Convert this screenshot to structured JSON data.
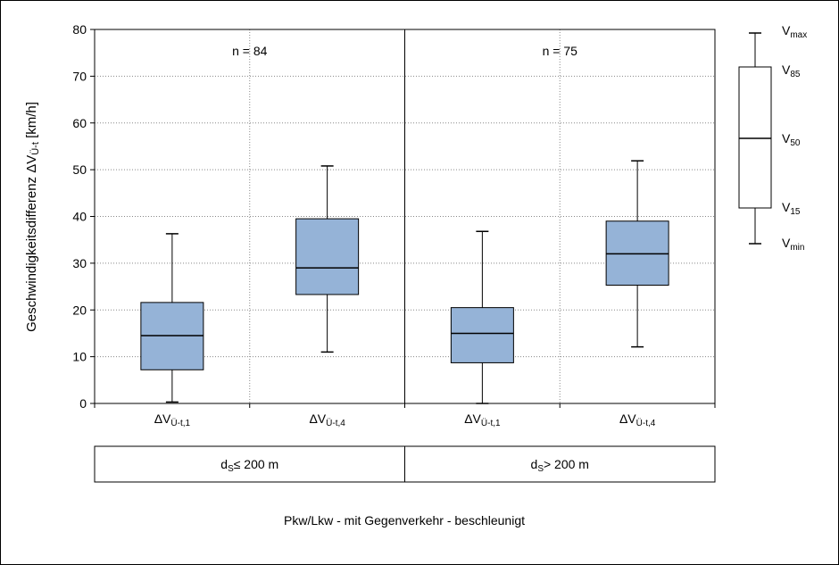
{
  "chart_data": {
    "type": "boxplot",
    "ylabel_main": "Geschwindigkeitsdifferenz  ΔV",
    "ylabel_sub": "Ü-t",
    "ylabel_unit": " [km/h]",
    "ylim": [
      0,
      80
    ],
    "yticks": [
      0,
      10,
      20,
      30,
      40,
      50,
      60,
      70,
      80
    ],
    "grid": true,
    "panels": [
      {
        "n_label": "n = 84",
        "group_main": "d",
        "group_sub": "S",
        "group_rest": "≤ 200 m"
      },
      {
        "n_label": "n = 75",
        "group_main": "d",
        "group_sub": "S",
        "group_rest": "> 200 m"
      }
    ],
    "boxes": [
      {
        "label_main": "ΔV",
        "label_sub": "Ü-t,1",
        "min": 0.3,
        "q15": 7.2,
        "median": 14.5,
        "q85": 21.6,
        "max": 36.3,
        "color": "#95b3d7"
      },
      {
        "label_main": "ΔV",
        "label_sub": "Ü-t,4",
        "min": 11.0,
        "q15": 23.3,
        "median": 29.0,
        "q85": 39.5,
        "max": 50.8,
        "color": "#95b3d7"
      },
      {
        "label_main": "ΔV",
        "label_sub": "Ü-t,1",
        "min": 0.0,
        "q15": 8.7,
        "median": 15.0,
        "q85": 20.5,
        "max": 36.8,
        "color": "#95b3d7"
      },
      {
        "label_main": "ΔV",
        "label_sub": "Ü-t,4",
        "min": 12.1,
        "q15": 25.3,
        "median": 32.0,
        "q85": 39.0,
        "max": 51.9,
        "color": "#95b3d7"
      }
    ],
    "legend": {
      "placement": "right",
      "items": [
        {
          "key": "max",
          "main": "V",
          "sub": "max"
        },
        {
          "key": "q85",
          "main": "V",
          "sub": "85"
        },
        {
          "key": "median",
          "main": "V",
          "sub": "50"
        },
        {
          "key": "q15",
          "main": "V",
          "sub": "15"
        },
        {
          "key": "min",
          "main": "V",
          "sub": "min"
        }
      ]
    },
    "caption": "Pkw/Lkw - mit Gegenverkehr - beschleunigt"
  }
}
